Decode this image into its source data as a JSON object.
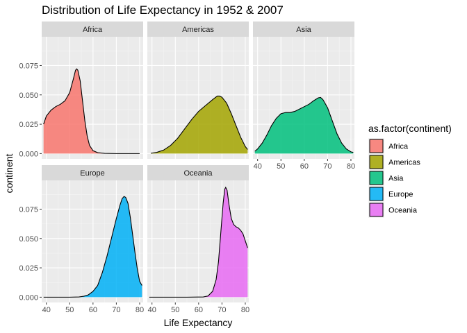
{
  "chart_data": {
    "type": "area",
    "subtype": "faceted density",
    "title": "Distribution of Life Expectancy in 1952 & 2007",
    "xlabel": "Life Expectancy",
    "ylabel": "continent",
    "xlim": [
      38,
      81.5
    ],
    "ylim": [
      -0.0045,
      0.0995
    ],
    "x_ticks": [
      40,
      50,
      60,
      70,
      80
    ],
    "y_ticks": [
      0,
      0.025,
      0.05,
      0.075
    ],
    "y_tick_labels": [
      "0.000",
      "0.025",
      "0.050",
      "0.075"
    ],
    "grid": true,
    "panel_background": "#ebebeb",
    "strip_background": "#d9d9d9",
    "legend": {
      "title": "as.factor(continent)",
      "position": "right",
      "entries": [
        "Africa",
        "Americas",
        "Asia",
        "Europe",
        "Oceania"
      ]
    },
    "series": [
      {
        "name": "Africa",
        "color": "#F8766D",
        "points": [
          [
            38.8,
            0.025
          ],
          [
            40,
            0.032
          ],
          [
            42,
            0.037
          ],
          [
            44,
            0.04
          ],
          [
            46,
            0.042
          ],
          [
            48,
            0.045
          ],
          [
            50,
            0.052
          ],
          [
            51.5,
            0.063
          ],
          [
            52.5,
            0.071
          ],
          [
            53,
            0.0722
          ],
          [
            53.5,
            0.071
          ],
          [
            54.5,
            0.062
          ],
          [
            55.5,
            0.045
          ],
          [
            56.5,
            0.028
          ],
          [
            57.5,
            0.015
          ],
          [
            58.5,
            0.007
          ],
          [
            60,
            0.0025
          ],
          [
            62,
            0.0008
          ],
          [
            65,
            0.0002
          ],
          [
            70,
            0
          ],
          [
            80,
            0
          ]
        ]
      },
      {
        "name": "Americas",
        "color": "#A3A500",
        "points": [
          [
            39.5,
            0.0003
          ],
          [
            42,
            0.001
          ],
          [
            45,
            0.003
          ],
          [
            48,
            0.007
          ],
          [
            51,
            0.013
          ],
          [
            54,
            0.021
          ],
          [
            57,
            0.029
          ],
          [
            60,
            0.036
          ],
          [
            63,
            0.041
          ],
          [
            66,
            0.046
          ],
          [
            68,
            0.049
          ],
          [
            69,
            0.049
          ],
          [
            70,
            0.048
          ],
          [
            72,
            0.043
          ],
          [
            74,
            0.034
          ],
          [
            76,
            0.024
          ],
          [
            78,
            0.014
          ],
          [
            80,
            0.006
          ],
          [
            81,
            0.0035
          ]
        ]
      },
      {
        "name": "Asia",
        "color": "#00BF7D",
        "points": [
          [
            38.8,
            0.002
          ],
          [
            40,
            0.004
          ],
          [
            42,
            0.009
          ],
          [
            44,
            0.016
          ],
          [
            46,
            0.024
          ],
          [
            48,
            0.03
          ],
          [
            50,
            0.034
          ],
          [
            52,
            0.035
          ],
          [
            54,
            0.035
          ],
          [
            56,
            0.036
          ],
          [
            58,
            0.038
          ],
          [
            60,
            0.04
          ],
          [
            62,
            0.042
          ],
          [
            64,
            0.045
          ],
          [
            66,
            0.0475
          ],
          [
            67,
            0.0478
          ],
          [
            68,
            0.046
          ],
          [
            70,
            0.039
          ],
          [
            72,
            0.028
          ],
          [
            74,
            0.017
          ],
          [
            76,
            0.009
          ],
          [
            78,
            0.004
          ],
          [
            80,
            0.0015
          ],
          [
            81,
            0.001
          ]
        ]
      },
      {
        "name": "Europe",
        "color": "#00B0F6",
        "points": [
          [
            38.8,
            0
          ],
          [
            50,
            0
          ],
          [
            54,
            0.0002
          ],
          [
            56,
            0.0008
          ],
          [
            58,
            0.002
          ],
          [
            60,
            0.005
          ],
          [
            62,
            0.01
          ],
          [
            64,
            0.021
          ],
          [
            66,
            0.035
          ],
          [
            68,
            0.051
          ],
          [
            70,
            0.067
          ],
          [
            71.5,
            0.078
          ],
          [
            72.5,
            0.084
          ],
          [
            73.3,
            0.0858
          ],
          [
            74,
            0.085
          ],
          [
            75,
            0.08
          ],
          [
            76,
            0.068
          ],
          [
            77,
            0.053
          ],
          [
            78,
            0.038
          ],
          [
            79,
            0.024
          ],
          [
            80,
            0.0135
          ],
          [
            81,
            0.01
          ]
        ]
      },
      {
        "name": "Oceania",
        "color": "#E76BF3",
        "points": [
          [
            38.8,
            0
          ],
          [
            55,
            0
          ],
          [
            62,
            0.0002
          ],
          [
            64,
            0.001
          ],
          [
            66,
            0.005
          ],
          [
            67.5,
            0.015
          ],
          [
            68.5,
            0.03
          ],
          [
            69.5,
            0.055
          ],
          [
            70.5,
            0.08
          ],
          [
            71.2,
            0.092
          ],
          [
            71.6,
            0.0935
          ],
          [
            72.2,
            0.091
          ],
          [
            73,
            0.079
          ],
          [
            74,
            0.067
          ],
          [
            75,
            0.062
          ],
          [
            76,
            0.06
          ],
          [
            77,
            0.059
          ],
          [
            78,
            0.057
          ],
          [
            79,
            0.054
          ],
          [
            80,
            0.048
          ],
          [
            81,
            0.042
          ]
        ]
      }
    ]
  }
}
